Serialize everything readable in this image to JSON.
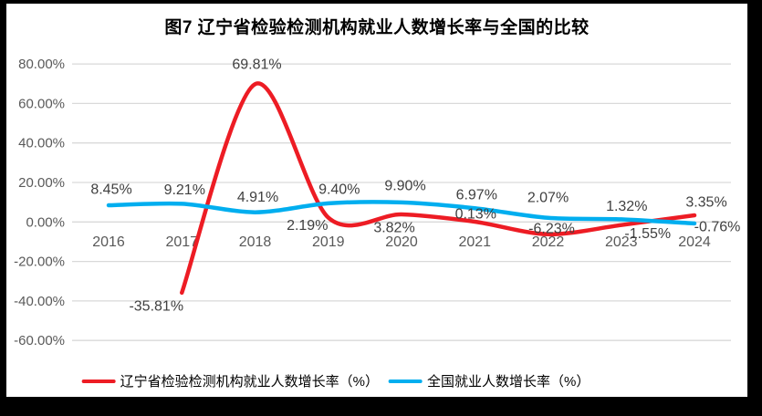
{
  "chart_data": {
    "type": "line",
    "title": "图7  辽宁省检验检测机构就业人数增长率与全国的比较",
    "categories": [
      "2016",
      "2017",
      "2018",
      "2019",
      "2020",
      "2021",
      "2022",
      "2023",
      "2024"
    ],
    "series": [
      {
        "name": "辽宁省检验检测机构就业人数增长率（%）",
        "color": "#ED1C24",
        "values": [
          null,
          -35.81,
          69.81,
          2.19,
          3.82,
          0.13,
          -6.23,
          -1.55,
          3.35
        ],
        "label_offsets": [
          null,
          [
            -28,
            14
          ],
          [
            2,
            -22
          ],
          [
            -23,
            8
          ],
          [
            -8,
            14
          ],
          [
            1,
            -9
          ],
          [
            4,
            -7
          ],
          [
            29,
            9
          ],
          [
            13,
            -15
          ]
        ]
      },
      {
        "name": "全国就业人数增长率（%）",
        "color": "#00AEEF",
        "values": [
          8.45,
          9.21,
          4.91,
          9.4,
          9.9,
          6.97,
          2.07,
          1.32,
          -0.76
        ],
        "label_offsets": [
          [
            3,
            -18
          ],
          [
            3,
            -16
          ],
          [
            3,
            -17
          ],
          [
            12,
            -16
          ],
          [
            4,
            -19
          ],
          [
            2,
            -15
          ],
          [
            0,
            -23
          ],
          [
            6,
            -15
          ],
          [
            25,
            3
          ]
        ]
      }
    ],
    "yaxis": {
      "min": -60,
      "max": 80,
      "step": 20,
      "tick_suffix": "%",
      "tick_decimals": 2
    },
    "data_labels": true,
    "data_label_decimals": 2,
    "data_label_suffix": "%",
    "grid": "horizontal",
    "legend_position": "bottom"
  },
  "colors": {
    "frame": "#000000",
    "background": "#FFFFFF",
    "gridline": "#D9D9D9",
    "axis_text": "#595959",
    "data_label_text": "#404040",
    "series_liaoning": "#ED1C24",
    "series_national": "#00AEEF"
  }
}
